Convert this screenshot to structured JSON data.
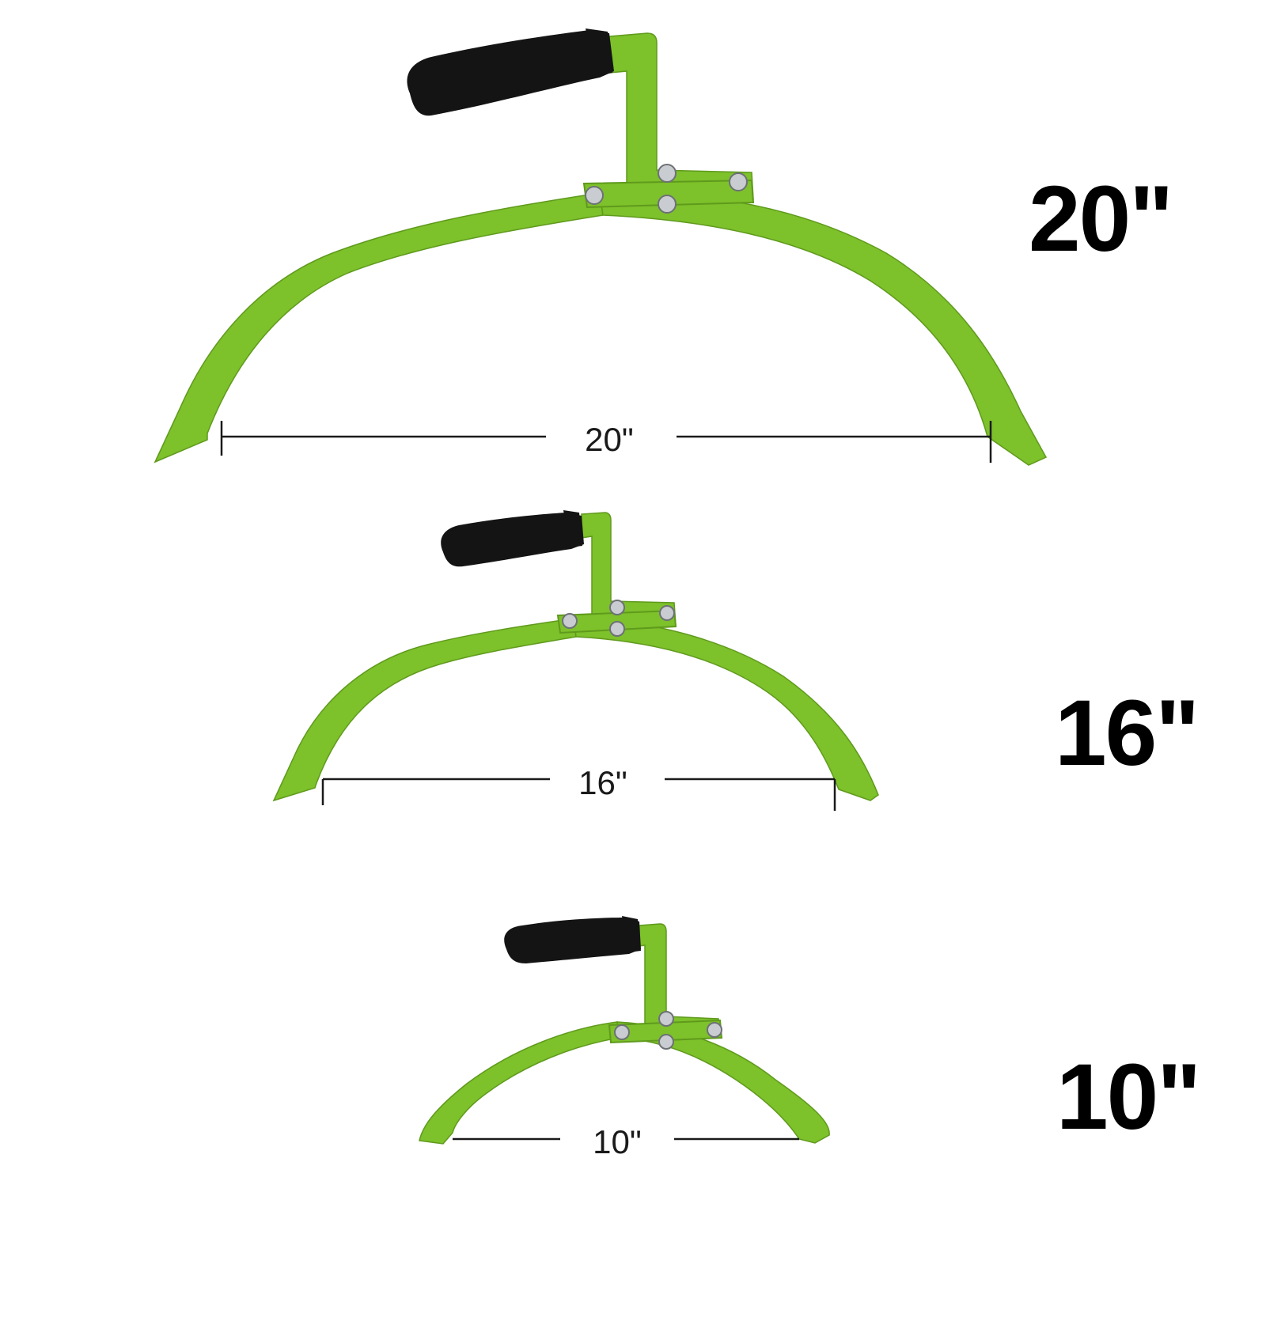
{
  "colors": {
    "tong_green": "#7dc12b",
    "tong_edge": "#5f9a1c",
    "handle_black": "#141414",
    "bolt_silver": "#c9ccd0",
    "line_black": "#1a1a1a",
    "background": "#ffffff"
  },
  "icons": [
    "log-tong-icon",
    "grip-handle-icon",
    "bolt-icon",
    "dimension-line-icon"
  ],
  "tongs": [
    {
      "id": "20",
      "size_label": "20\"",
      "span_label": "20\""
    },
    {
      "id": "16",
      "size_label": "16\"",
      "span_label": "16\""
    },
    {
      "id": "10",
      "size_label": "10\"",
      "span_label": "10\""
    }
  ]
}
